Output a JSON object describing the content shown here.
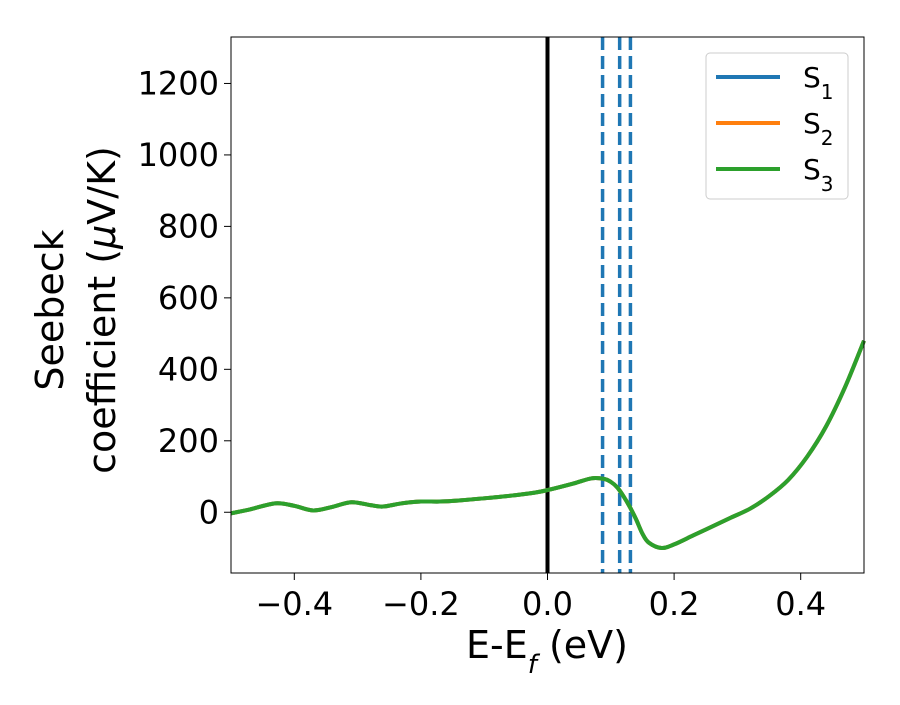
{
  "chart_data": {
    "type": "line",
    "x_label": "E-E",
    "x_label_subscript": "f",
    "x_label_unit": " (eV)",
    "y_label_line1": "Seebeck",
    "y_label_line2_prefix": "coefficient  (",
    "y_label_mu": "μ",
    "y_label_line2_suffix": "V/K)",
    "xlim": [
      -0.5,
      0.5
    ],
    "ylim": [
      -170,
      1330
    ],
    "x_ticks": [
      -0.4,
      -0.2,
      0.0,
      0.2,
      0.4
    ],
    "x_tick_labels": [
      "−0.4",
      "−0.2",
      "0.0",
      "0.2",
      "0.4"
    ],
    "y_ticks": [
      0,
      200,
      400,
      600,
      800,
      1000,
      1200
    ],
    "y_tick_labels": [
      "0",
      "200",
      "400",
      "600",
      "800",
      "1000",
      "1200"
    ],
    "legend_position": "top-right",
    "series": [
      {
        "name": "S",
        "subscript": "1",
        "color": "#1f77b4",
        "x": [
          -0.5,
          -0.47,
          -0.43,
          -0.4,
          -0.37,
          -0.34,
          -0.31,
          -0.28,
          -0.26,
          -0.23,
          -0.2,
          -0.17,
          -0.14,
          -0.1,
          -0.06,
          -0.02,
          0.0,
          0.04,
          0.07,
          0.09,
          0.1,
          0.11,
          0.12,
          0.13,
          0.14,
          0.15,
          0.16,
          0.18,
          0.2,
          0.23,
          0.26,
          0.29,
          0.32,
          0.35,
          0.38,
          0.41,
          0.44,
          0.47,
          0.5
        ],
        "y": [
          -3,
          8,
          25,
          18,
          5,
          15,
          28,
          20,
          16,
          25,
          30,
          30,
          33,
          39,
          46,
          55,
          62,
          80,
          95,
          93,
          85,
          70,
          45,
          15,
          -20,
          -60,
          -85,
          -100,
          -90,
          -65,
          -40,
          -15,
          10,
          45,
          90,
          155,
          240,
          350,
          480
        ]
      },
      {
        "name": "S",
        "subscript": "2",
        "color": "#ff7f0e",
        "x": [
          -0.5,
          -0.47,
          -0.43,
          -0.4,
          -0.37,
          -0.34,
          -0.31,
          -0.28,
          -0.26,
          -0.23,
          -0.2,
          -0.17,
          -0.14,
          -0.1,
          -0.06,
          -0.02,
          0.0,
          0.04,
          0.07,
          0.09,
          0.1,
          0.11,
          0.12,
          0.13,
          0.14,
          0.15,
          0.16,
          0.18,
          0.2,
          0.23,
          0.26,
          0.29,
          0.32,
          0.35,
          0.38,
          0.41,
          0.44,
          0.47,
          0.5
        ],
        "y": [
          -3,
          8,
          25,
          18,
          5,
          15,
          28,
          20,
          16,
          25,
          30,
          30,
          33,
          39,
          46,
          55,
          62,
          80,
          95,
          93,
          85,
          70,
          45,
          15,
          -20,
          -60,
          -85,
          -100,
          -90,
          -65,
          -40,
          -15,
          10,
          45,
          90,
          155,
          240,
          350,
          480
        ]
      },
      {
        "name": "S",
        "subscript": "3",
        "color": "#2ca02c",
        "x": [
          -0.5,
          -0.47,
          -0.43,
          -0.4,
          -0.37,
          -0.34,
          -0.31,
          -0.28,
          -0.26,
          -0.23,
          -0.2,
          -0.17,
          -0.14,
          -0.1,
          -0.06,
          -0.02,
          0.0,
          0.04,
          0.07,
          0.09,
          0.1,
          0.11,
          0.12,
          0.13,
          0.14,
          0.15,
          0.16,
          0.18,
          0.2,
          0.23,
          0.26,
          0.29,
          0.32,
          0.35,
          0.38,
          0.41,
          0.44,
          0.47,
          0.5
        ],
        "y": [
          -3,
          8,
          25,
          18,
          5,
          15,
          28,
          20,
          16,
          25,
          30,
          30,
          33,
          39,
          46,
          55,
          62,
          80,
          95,
          93,
          85,
          70,
          45,
          15,
          -20,
          -60,
          -85,
          -100,
          -90,
          -65,
          -40,
          -15,
          10,
          45,
          90,
          155,
          240,
          350,
          480
        ]
      }
    ],
    "vertical_lines": [
      {
        "x": 0.0,
        "style": "solid",
        "color": "#000000"
      },
      {
        "x": 0.087,
        "style": "dashed",
        "color": "#1f77b4"
      },
      {
        "x": 0.114,
        "style": "dashed",
        "color": "#1f77b4"
      },
      {
        "x": 0.131,
        "style": "dashed",
        "color": "#1f77b4"
      }
    ]
  }
}
